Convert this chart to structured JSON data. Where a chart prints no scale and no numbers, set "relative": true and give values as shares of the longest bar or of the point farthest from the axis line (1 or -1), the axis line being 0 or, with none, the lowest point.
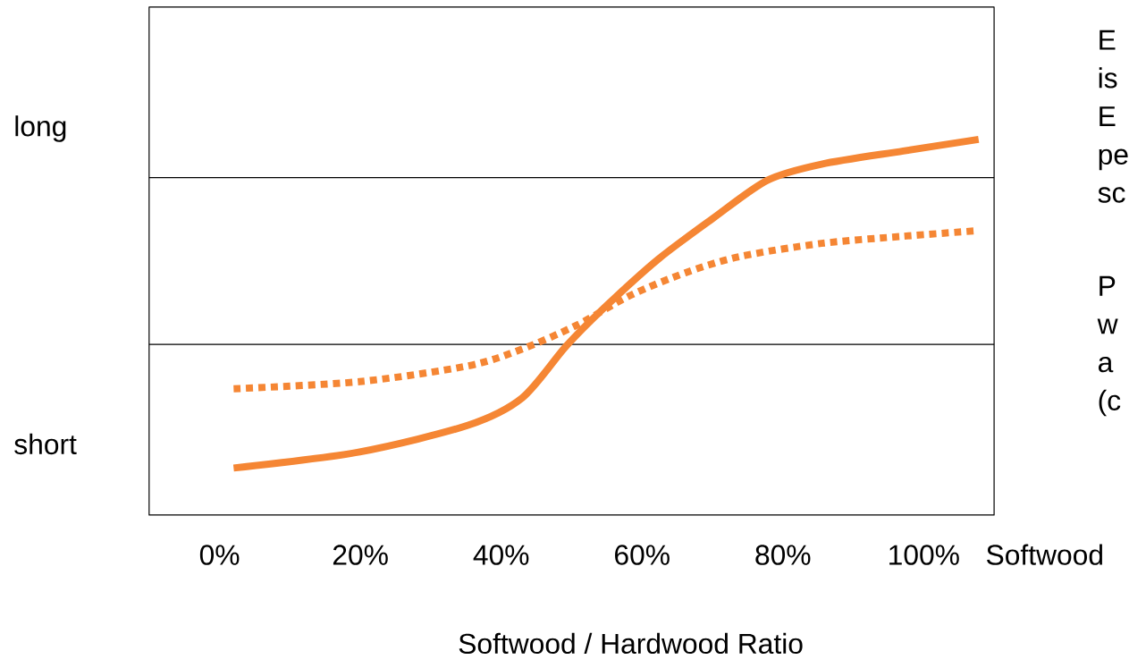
{
  "chart_data": {
    "type": "line",
    "relative": true,
    "xlabel": "Softwood / Hardwood Ratio",
    "x": [
      2.0,
      19.9,
      35.3,
      43.0,
      49.2,
      54.6,
      62.3,
      70.1,
      77.8,
      85.5,
      97.1,
      107.8
    ],
    "series": [
      {
        "color": "#f58634",
        "line_style": "solid",
        "values": [
          0.125,
          0.168,
          0.239,
          0.312,
          0.449,
          0.551,
          0.681,
          0.79,
          0.891,
          0.934,
          0.969,
          1.0
        ]
      },
      {
        "color": "#f58634",
        "line_style": "dotted",
        "x": [
          2.0,
          19.9,
          35.3,
          43.0,
          50.8,
          58.5,
          66.2,
          73.9,
          85.5,
          97.1,
          107.8
        ],
        "values": [
          0.336,
          0.355,
          0.397,
          0.442,
          0.506,
          0.586,
          0.645,
          0.688,
          0.723,
          0.742,
          0.757
        ]
      }
    ],
    "xlim": [
      -10,
      110
    ],
    "xticks": [
      {
        "value": 0,
        "label": "0%"
      },
      {
        "value": 20,
        "label": "20%"
      },
      {
        "value": 40,
        "label": "40%"
      },
      {
        "value": 60,
        "label": "60%"
      },
      {
        "value": 80,
        "label": "80%"
      },
      {
        "value": 100,
        "label": "100%"
      }
    ],
    "ref_lines": [
      {
        "axis": "y",
        "value": 0.898,
        "color": "#000000"
      },
      {
        "axis": "y",
        "value": 0.454,
        "color": "#000000"
      }
    ],
    "marker": "none",
    "annotations": [
      "long",
      "short",
      "Softwood",
      "E",
      "is",
      "E",
      "pe",
      "sc",
      "P",
      "w",
      "a",
      "(c"
    ]
  }
}
